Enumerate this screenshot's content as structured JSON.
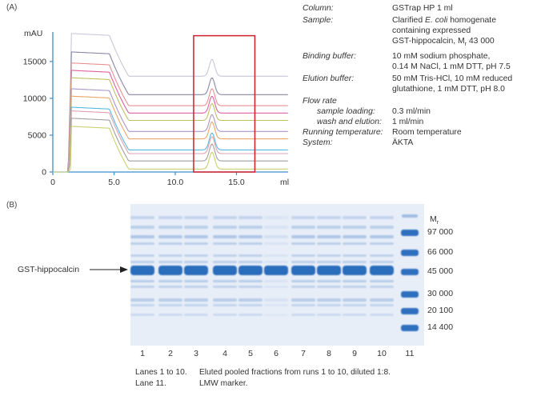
{
  "panel_a": {
    "label": "(A)",
    "chart_data": {
      "type": "line",
      "title": "",
      "xlabel": "ml",
      "ylabel": "mAU",
      "xlim": [
        0,
        20
      ],
      "ylim": [
        0,
        19000
      ],
      "x_ticks": [
        "0",
        "5.0",
        "10.0",
        "15.0"
      ],
      "x_tick_values": [
        0,
        5,
        10,
        15
      ],
      "y_ticks": [
        "0",
        "5000",
        "10000",
        "15000"
      ],
      "y_tick_values": [
        0,
        5000,
        10000,
        15000
      ],
      "series_count": 11,
      "series_colors": [
        "#c8d070",
        "#a0a0a0",
        "#e0a0b0",
        "#58b8e0",
        "#e8a868",
        "#a898c8",
        "#c0c060",
        "#e060a0",
        "#e89090",
        "#8888a8",
        "#c8c8d8"
      ],
      "series_baselines": [
        400,
        1500,
        2500,
        3000,
        4500,
        5500,
        7000,
        8000,
        9000,
        10500,
        13000
      ],
      "loading_plateau_height": 5800,
      "elution_peak_height": 2300,
      "loading_range": [
        1.3,
        4.5
      ],
      "elution_peak_x": 13.0,
      "highlight_box": {
        "x_range": [
          11.5,
          16.5
        ],
        "y_range": [
          0,
          18500
        ],
        "color": "#d0202a"
      },
      "axis_color": "#3a8fd0"
    }
  },
  "conditions": {
    "column": {
      "label": "Column:",
      "value": "GSTrap HP 1 ml"
    },
    "sample": {
      "label": "Sample:",
      "line1": "Clarified",
      "line1_italic": "E. coli",
      "line1_rest": "homogenate",
      "line2": "containing expressed",
      "line3_pre": "GST-hippocalcin, M",
      "line3_sub": "r",
      "line3_post": " 43 000"
    },
    "binding_buffer": {
      "label": "Binding buffer:",
      "line1": "10 mM sodium phosphate,",
      "line2": "0.14 M NaCl, 1 mM DTT, pH 7.5"
    },
    "elution_buffer": {
      "label": "Elution buffer:",
      "line1": "50 mM Tris-HCl, 10 mM reduced",
      "line2": "glutathione, 1 mM DTT, pH 8.0"
    },
    "flow_rate": {
      "label": "Flow rate"
    },
    "sample_loading": {
      "label": "sample loading:",
      "value": "0.3 ml/min"
    },
    "wash_elution": {
      "label": "wash and elution:",
      "value": "1 ml/min"
    },
    "running_temperature": {
      "label": "Running temperature:",
      "value": "Room temperature"
    },
    "system": {
      "label": "System:",
      "value": "ÄKTA"
    }
  },
  "panel_b": {
    "label": "(B)",
    "gst_label": "GST-hippocalcin",
    "mr_header_main": "M",
    "mr_header_sub": "r",
    "mw_markers": [
      "97 000",
      "66 000",
      "45 000",
      "30 000",
      "20 100",
      "14 400"
    ],
    "lanes": [
      "1",
      "2",
      "3",
      "4",
      "5",
      "6",
      "7",
      "8",
      "9",
      "10",
      "11"
    ],
    "gel_color": "#e8eef8",
    "band_color": "#1e63b8"
  },
  "caption": {
    "row1_label": "Lanes 1 to 10.",
    "row1_text": "Eluted pooled fractions from runs 1 to 10, diluted 1:8.",
    "row2_label": "Lane 11.",
    "row2_text": "LMW marker."
  }
}
